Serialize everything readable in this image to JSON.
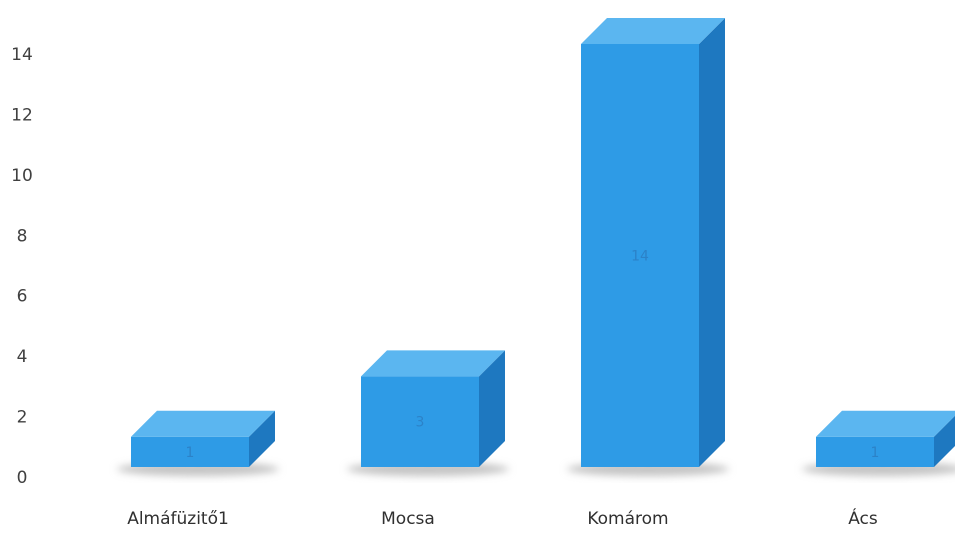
{
  "chart_data": {
    "type": "bar",
    "style": "3d-column",
    "categories": [
      "Almáfüzitő1",
      "Mocsa",
      "Komárom",
      "Ács"
    ],
    "values": [
      1,
      3,
      14,
      1
    ],
    "data_labels": [
      "1",
      "3",
      "14",
      "1"
    ],
    "title": "",
    "xlabel": "",
    "ylabel": "",
    "ylim": [
      0,
      14
    ],
    "yticks": [
      "0",
      "2",
      "4",
      "6",
      "8",
      "10",
      "12",
      "14"
    ],
    "grid": false,
    "legend": "none",
    "colors": {
      "front": "#2e9be6",
      "top": "#5bb6f0",
      "side": "#1e78c0",
      "shadow": "#c4c4c4"
    }
  }
}
